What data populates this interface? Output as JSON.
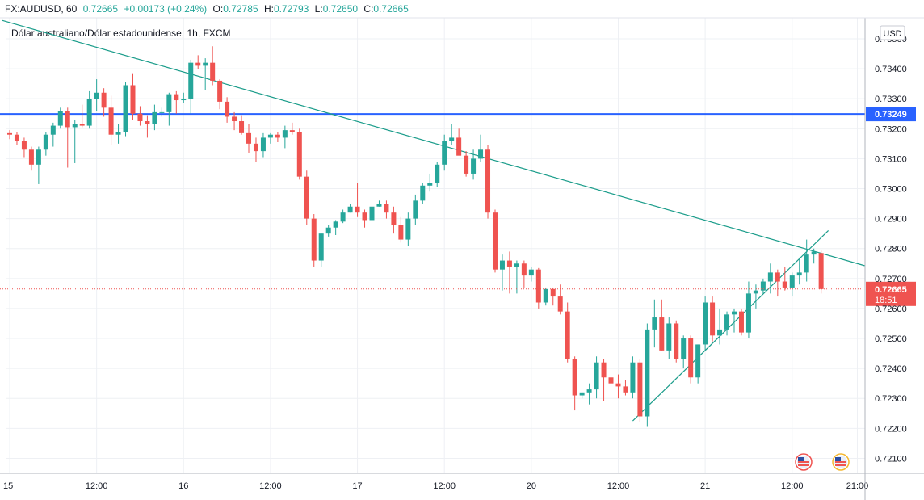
{
  "header": {
    "symbol": "FX:AUDUSD, 60",
    "last": "0.72665",
    "change": "+0.00173 (+0.24%)",
    "o_label": "O:",
    "o_value": "0.72785",
    "h_label": "H:",
    "h_value": "0.72793",
    "l_label": "L:",
    "l_value": "0.72650",
    "c_label": "C:",
    "c_value": "0.72665"
  },
  "colors": {
    "up": "#26a69a",
    "down": "#ef5350",
    "trendline": "#1a9c8a",
    "hline": "#2962ff",
    "grid": "#eef0f4",
    "axis": "#b2b5be"
  },
  "chart_data": {
    "type": "candlestick",
    "title": "Dólar australiano/Dólar estadounidense, 1h, FXCM",
    "currency": "USD",
    "ylim": [
      0.7205,
      0.7357
    ],
    "y_ticks": [
      "0.73500",
      "0.73400",
      "0.73300",
      "0.73200",
      "0.73100",
      "0.73000",
      "0.72900",
      "0.72800",
      "0.72700",
      "0.72600",
      "0.72500",
      "0.72400",
      "0.72300",
      "0.72200",
      "0.72100"
    ],
    "x_ticks": [
      {
        "label": "15",
        "index": 0
      },
      {
        "label": "12:00",
        "index": 12
      },
      {
        "label": "16",
        "index": 24
      },
      {
        "label": "12:00",
        "index": 36
      },
      {
        "label": "17",
        "index": 48
      },
      {
        "label": "12:00",
        "index": 60
      },
      {
        "label": "20",
        "index": 72
      },
      {
        "label": "12:00",
        "index": 84
      },
      {
        "label": "21",
        "index": 96
      },
      {
        "label": "12:00",
        "index": 108
      },
      {
        "label": "21:00",
        "index": 117
      }
    ],
    "horizontal_line": {
      "value": 0.73249,
      "label": "0.73249"
    },
    "last_price": {
      "value": 0.72665,
      "label": "0.72665",
      "countdown": "18:51"
    },
    "trendlines": [
      {
        "from": [
          -1,
          0.73561
        ],
        "to": [
          118,
          0.72743
        ]
      },
      {
        "from": [
          86,
          0.72225
        ],
        "to": [
          113,
          0.7286
        ]
      }
    ],
    "candles": [
      [
        0.73185,
        0.73195,
        0.73165,
        0.7318
      ],
      [
        0.7318,
        0.7319,
        0.73145,
        0.7316
      ],
      [
        0.7316,
        0.7317,
        0.73105,
        0.7313
      ],
      [
        0.7313,
        0.7314,
        0.7306,
        0.7308
      ],
      [
        0.7308,
        0.7314,
        0.73015,
        0.7313
      ],
      [
        0.7313,
        0.7319,
        0.7311,
        0.7318
      ],
      [
        0.7318,
        0.7322,
        0.7314,
        0.7321
      ],
      [
        0.7321,
        0.7327,
        0.732,
        0.7326
      ],
      [
        0.7326,
        0.7327,
        0.7307,
        0.73205
      ],
      [
        0.73205,
        0.7323,
        0.73085,
        0.73215
      ],
      [
        0.73215,
        0.7328,
        0.73205,
        0.7321
      ],
      [
        0.7321,
        0.73325,
        0.732,
        0.733
      ],
      [
        0.733,
        0.73365,
        0.7326,
        0.7332
      ],
      [
        0.7332,
        0.73335,
        0.7324,
        0.7327
      ],
      [
        0.7327,
        0.7331,
        0.73145,
        0.7318
      ],
      [
        0.7318,
        0.73215,
        0.7315,
        0.7319
      ],
      [
        0.7319,
        0.73355,
        0.73175,
        0.73345
      ],
      [
        0.73345,
        0.73385,
        0.7323,
        0.7325
      ],
      [
        0.7325,
        0.73275,
        0.7321,
        0.73225
      ],
      [
        0.73225,
        0.73245,
        0.7317,
        0.73215
      ],
      [
        0.73215,
        0.7328,
        0.73195,
        0.73255
      ],
      [
        0.73255,
        0.7327,
        0.7324,
        0.73255
      ],
      [
        0.73255,
        0.7332,
        0.7321,
        0.73315
      ],
      [
        0.73315,
        0.73325,
        0.7325,
        0.73295
      ],
      [
        0.73295,
        0.7332,
        0.73285,
        0.733
      ],
      [
        0.733,
        0.7343,
        0.7325,
        0.7342
      ],
      [
        0.7342,
        0.73445,
        0.734,
        0.7341
      ],
      [
        0.7341,
        0.73435,
        0.7333,
        0.7342
      ],
      [
        0.7342,
        0.73475,
        0.73345,
        0.7336
      ],
      [
        0.7336,
        0.73365,
        0.73265,
        0.7329
      ],
      [
        0.7329,
        0.73305,
        0.7322,
        0.7324
      ],
      [
        0.7324,
        0.73255,
        0.73195,
        0.73225
      ],
      [
        0.73225,
        0.73245,
        0.7318,
        0.73185
      ],
      [
        0.73185,
        0.73215,
        0.7312,
        0.7315
      ],
      [
        0.7315,
        0.7317,
        0.7309,
        0.73125
      ],
      [
        0.73125,
        0.73185,
        0.73105,
        0.7317
      ],
      [
        0.7317,
        0.73185,
        0.7315,
        0.7318
      ],
      [
        0.7318,
        0.7319,
        0.73155,
        0.7317
      ],
      [
        0.7317,
        0.7321,
        0.73135,
        0.73195
      ],
      [
        0.73195,
        0.7322,
        0.7318,
        0.7319
      ],
      [
        0.7319,
        0.732,
        0.7303,
        0.7304
      ],
      [
        0.7304,
        0.7306,
        0.7288,
        0.729
      ],
      [
        0.729,
        0.72915,
        0.7274,
        0.7276
      ],
      [
        0.7276,
        0.7285,
        0.7274,
        0.7285
      ],
      [
        0.7285,
        0.7288,
        0.7284,
        0.7287
      ],
      [
        0.7287,
        0.72895,
        0.72845,
        0.7289
      ],
      [
        0.7289,
        0.7293,
        0.72885,
        0.7292
      ],
      [
        0.7292,
        0.7295,
        0.7292,
        0.7294
      ],
      [
        0.7294,
        0.7302,
        0.72905,
        0.7292
      ],
      [
        0.7292,
        0.7293,
        0.7287,
        0.72895
      ],
      [
        0.72895,
        0.72945,
        0.7288,
        0.7294
      ],
      [
        0.7294,
        0.7296,
        0.7294,
        0.7295
      ],
      [
        0.7295,
        0.7296,
        0.729,
        0.7292
      ],
      [
        0.7292,
        0.7294,
        0.7285,
        0.7288
      ],
      [
        0.7288,
        0.72905,
        0.7282,
        0.7283
      ],
      [
        0.7283,
        0.7292,
        0.7281,
        0.729
      ],
      [
        0.729,
        0.7298,
        0.7288,
        0.7296
      ],
      [
        0.7296,
        0.7302,
        0.7295,
        0.7301
      ],
      [
        0.7301,
        0.7305,
        0.7299,
        0.7302
      ],
      [
        0.7302,
        0.7309,
        0.73005,
        0.7308
      ],
      [
        0.7308,
        0.7318,
        0.7306,
        0.7316
      ],
      [
        0.7316,
        0.73215,
        0.73145,
        0.7317
      ],
      [
        0.7317,
        0.732,
        0.73115,
        0.7311
      ],
      [
        0.7311,
        0.73125,
        0.7304,
        0.7305
      ],
      [
        0.7305,
        0.7313,
        0.7303,
        0.731
      ],
      [
        0.731,
        0.7318,
        0.7309,
        0.7313
      ],
      [
        0.7313,
        0.73145,
        0.729,
        0.7292
      ],
      [
        0.7292,
        0.7293,
        0.7272,
        0.7273
      ],
      [
        0.7273,
        0.7278,
        0.7266,
        0.7276
      ],
      [
        0.7276,
        0.7279,
        0.7265,
        0.7274
      ],
      [
        0.7274,
        0.7276,
        0.7265,
        0.7275
      ],
      [
        0.7275,
        0.7276,
        0.7267,
        0.7271
      ],
      [
        0.7271,
        0.7274,
        0.7269,
        0.7273
      ],
      [
        0.7273,
        0.72735,
        0.726,
        0.7262
      ],
      [
        0.7262,
        0.7267,
        0.7261,
        0.72665
      ],
      [
        0.72665,
        0.7267,
        0.7261,
        0.7264
      ],
      [
        0.7264,
        0.7268,
        0.7258,
        0.7259
      ],
      [
        0.7259,
        0.7262,
        0.7242,
        0.7243
      ],
      [
        0.7243,
        0.7244,
        0.7226,
        0.7231
      ],
      [
        0.7231,
        0.7232,
        0.723,
        0.7232
      ],
      [
        0.7232,
        0.7235,
        0.7228,
        0.7233
      ],
      [
        0.7233,
        0.7244,
        0.723,
        0.7242
      ],
      [
        0.7242,
        0.7243,
        0.7229,
        0.7237
      ],
      [
        0.7237,
        0.724,
        0.7228,
        0.7235
      ],
      [
        0.7235,
        0.7238,
        0.723,
        0.7234
      ],
      [
        0.7234,
        0.7236,
        0.7231,
        0.7232
      ],
      [
        0.7232,
        0.7244,
        0.723,
        0.7242
      ],
      [
        0.7242,
        0.7243,
        0.7222,
        0.7224
      ],
      [
        0.7224,
        0.7255,
        0.72205,
        0.7253
      ],
      [
        0.7253,
        0.7263,
        0.7247,
        0.7257
      ],
      [
        0.7257,
        0.7263,
        0.7246,
        0.7246
      ],
      [
        0.7246,
        0.7257,
        0.7243,
        0.7255
      ],
      [
        0.7255,
        0.7256,
        0.7242,
        0.7243
      ],
      [
        0.7243,
        0.7251,
        0.724,
        0.725
      ],
      [
        0.725,
        0.7251,
        0.7235,
        0.7237
      ],
      [
        0.7237,
        0.7248,
        0.7235,
        0.7248
      ],
      [
        0.7248,
        0.7264,
        0.7246,
        0.7262
      ],
      [
        0.7262,
        0.7264,
        0.7249,
        0.7251
      ],
      [
        0.7251,
        0.726,
        0.7248,
        0.7253
      ],
      [
        0.7253,
        0.7259,
        0.7251,
        0.7258
      ],
      [
        0.7258,
        0.726,
        0.7252,
        0.7259
      ],
      [
        0.7259,
        0.726,
        0.7251,
        0.7252
      ],
      [
        0.7252,
        0.7269,
        0.725,
        0.7265
      ],
      [
        0.7265,
        0.7268,
        0.726,
        0.7266
      ],
      [
        0.7266,
        0.727,
        0.7265,
        0.7269
      ],
      [
        0.7269,
        0.7275,
        0.7265,
        0.7272
      ],
      [
        0.7272,
        0.7273,
        0.7264,
        0.7269
      ],
      [
        0.7269,
        0.7274,
        0.7266,
        0.7267
      ],
      [
        0.7267,
        0.7272,
        0.7264,
        0.7271
      ],
      [
        0.7271,
        0.7277,
        0.7268,
        0.7272
      ],
      [
        0.7272,
        0.7283,
        0.7269,
        0.7278
      ],
      [
        0.7278,
        0.728,
        0.7275,
        0.7279
      ],
      [
        0.72785,
        0.72793,
        0.7265,
        0.72665
      ]
    ]
  }
}
